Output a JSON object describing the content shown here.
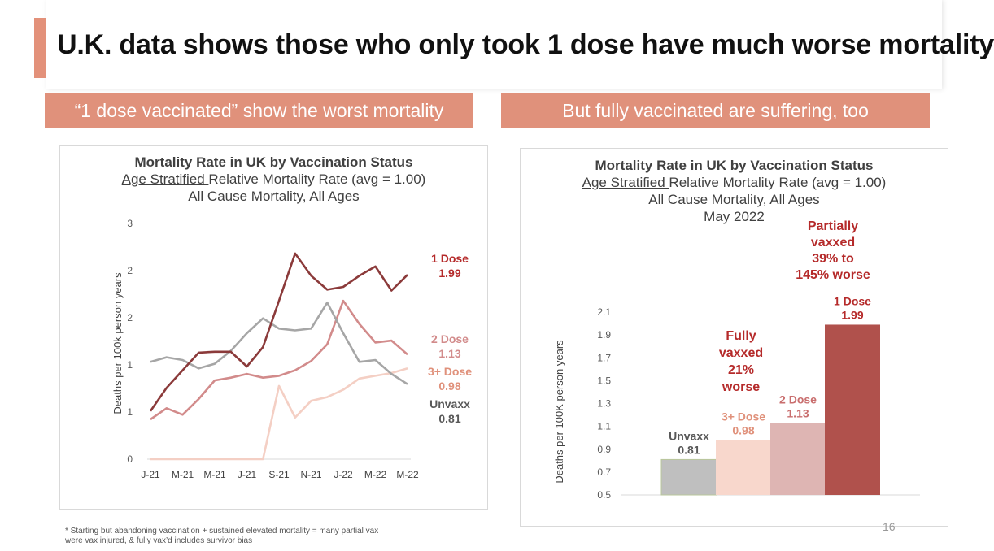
{
  "slide": {
    "title": "U.K. data shows those who only took 1 dose have much worse mortality",
    "page_number": "16"
  },
  "banners": {
    "left": "“1 dose vaccinated” show the worst mortality",
    "right": "But fully vaccinated are suffering, too"
  },
  "left_chart": {
    "title": "Mortality Rate in UK by Vaccination Status",
    "subtitle_underlined": "Age Stratified ",
    "subtitle_rest": "Relative Mortality Rate (avg = 1.00)",
    "subtitle2": "All Cause Mortality, All Ages"
  },
  "right_chart": {
    "title": "Mortality Rate in UK by Vaccination Status",
    "subtitle_underlined": "Age Stratified ",
    "subtitle_rest": "Relative Mortality Rate (avg = 1.00)",
    "subtitle2": "All Cause Mortality, All Ages",
    "subtitle3": "May 2022",
    "annotation_partial": [
      "Partially",
      "vaxxed",
      "39% to",
      "145% worse"
    ],
    "annotation_fully": [
      "Fully",
      "vaxxed",
      "21%",
      "worse"
    ]
  },
  "footnote": {
    "line1": "* Starting but abandoning vaccination + sustained elevated mortality = many partial vax",
    "line2": "were vax injured, & fully vax’d includes survivor bias"
  },
  "chart_data": [
    {
      "type": "line",
      "ylabel": "Deaths per 100k person years",
      "y_tick_labels": [
        "0",
        "1",
        "1",
        "2",
        "2",
        "3"
      ],
      "ylim": [
        0,
        2.5
      ],
      "x_tick_labels": [
        "J-21",
        "M-21",
        "M-21",
        "J-21",
        "S-21",
        "N-21",
        "J-22",
        "M-22",
        "M-22"
      ],
      "x_count": 17,
      "series": [
        {
          "name": "1 Dose",
          "end_label": "1 Dose",
          "end_value_label": "1.99",
          "color": "#8b3a3a",
          "values": [
            0.52,
            0.77,
            0.96,
            1.15,
            1.16,
            1.16,
            1.0,
            1.21,
            1.71,
            2.22,
            1.98,
            1.83,
            1.86,
            1.98,
            2.08,
            1.82,
            1.99
          ]
        },
        {
          "name": "2 Dose",
          "end_label": "2 Dose",
          "end_value_label": "1.13",
          "color": "#d28b8b",
          "values": [
            0.43,
            0.55,
            0.48,
            0.65,
            0.85,
            0.88,
            0.92,
            0.88,
            0.9,
            0.96,
            1.06,
            1.24,
            1.71,
            1.46,
            1.26,
            1.28,
            1.13
          ]
        },
        {
          "name": "3+ Dose",
          "end_label": "3+ Dose",
          "end_value_label": "0.98",
          "color": "#f4cfc4",
          "values": [
            0,
            0,
            0,
            0,
            0,
            0,
            0,
            0,
            0.79,
            0.45,
            0.63,
            0.67,
            0.75,
            0.87,
            0.9,
            0.93,
            0.98
          ]
        },
        {
          "name": "Unvaxx",
          "end_label": "Unvaxx",
          "end_value_label": "0.81",
          "color": "#a6a6a6",
          "values": [
            1.05,
            1.1,
            1.07,
            0.98,
            1.03,
            1.17,
            1.36,
            1.52,
            1.41,
            1.39,
            1.41,
            1.69,
            1.36,
            1.05,
            1.07,
            0.92,
            0.81
          ]
        }
      ]
    },
    {
      "type": "bar",
      "ylabel": "Deaths per 100K person years",
      "ylim": [
        0.5,
        2.1
      ],
      "y_ticks": [
        "0.5",
        "0.7",
        "0.9",
        "1.1",
        "1.3",
        "1.5",
        "1.7",
        "1.9",
        "2.1"
      ],
      "categories": [
        "Unvaxx",
        "3+ Dose",
        "2 Dose",
        "1 Dose"
      ],
      "values": [
        0.81,
        0.98,
        1.13,
        1.99
      ],
      "value_labels": [
        "0.81",
        "0.98",
        "1.13",
        "1.99"
      ],
      "colors": [
        "#bfbfbf",
        "#f8d7cc",
        "#deb5b3",
        "#b0514c"
      ],
      "label_colors": [
        "#595959",
        "#e0917b",
        "#c96e6e",
        "#b52a2a"
      ]
    }
  ]
}
